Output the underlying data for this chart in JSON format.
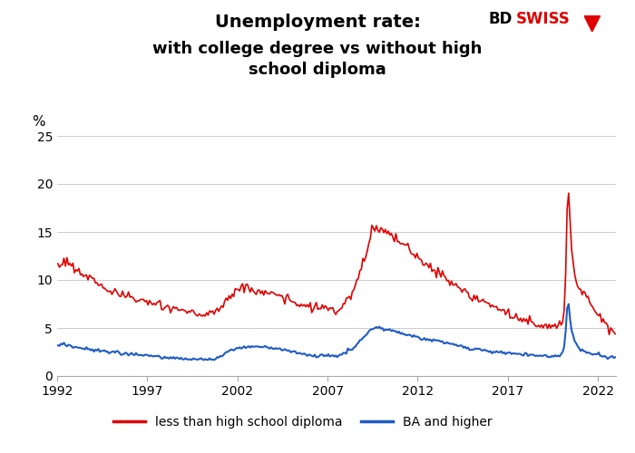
{
  "title_line1": "Unemployment rate:",
  "title_line2": "with college degree vs without high\nschool diploma",
  "ylabel": "%",
  "x_ticks": [
    1992,
    1997,
    2002,
    2007,
    2012,
    2017,
    2022
  ],
  "ylim": [
    0,
    25
  ],
  "y_ticks": [
    0,
    5,
    10,
    15,
    20,
    25
  ],
  "legend_red": "less than high school diploma",
  "legend_blue": "BA and higher",
  "color_red": "#e00000",
  "color_blue": "#1e5bc6",
  "background": "#ffffff",
  "bd_color": "#000000",
  "swiss_color": "#e00000",
  "red_keypoints": [
    [
      1992.0,
      11.2
    ],
    [
      1992.4,
      12.1
    ],
    [
      1993.0,
      11.2
    ],
    [
      1993.5,
      10.5
    ],
    [
      1994.0,
      10.0
    ],
    [
      1995.0,
      8.8
    ],
    [
      1996.0,
      8.2
    ],
    [
      1997.0,
      7.6
    ],
    [
      1998.0,
      7.2
    ],
    [
      1999.0,
      6.8
    ],
    [
      2000.0,
      6.3
    ],
    [
      2000.5,
      6.5
    ],
    [
      2001.0,
      7.0
    ],
    [
      2001.5,
      8.2
    ],
    [
      2002.0,
      9.0
    ],
    [
      2002.5,
      9.2
    ],
    [
      2003.0,
      8.8
    ],
    [
      2003.5,
      8.7
    ],
    [
      2004.0,
      8.5
    ],
    [
      2004.5,
      8.2
    ],
    [
      2005.0,
      7.8
    ],
    [
      2006.0,
      7.1
    ],
    [
      2006.5,
      7.0
    ],
    [
      2007.0,
      7.2
    ],
    [
      2007.5,
      6.5
    ],
    [
      2008.0,
      7.5
    ],
    [
      2008.5,
      9.0
    ],
    [
      2009.0,
      12.0
    ],
    [
      2009.5,
      15.5
    ],
    [
      2010.0,
      15.2
    ],
    [
      2010.5,
      14.5
    ],
    [
      2011.0,
      14.0
    ],
    [
      2011.5,
      13.3
    ],
    [
      2012.0,
      12.5
    ],
    [
      2012.5,
      11.5
    ],
    [
      2013.0,
      11.0
    ],
    [
      2014.0,
      9.5
    ],
    [
      2015.0,
      8.2
    ],
    [
      2016.0,
      7.5
    ],
    [
      2017.0,
      6.5
    ],
    [
      2018.0,
      5.6
    ],
    [
      2019.0,
      5.2
    ],
    [
      2019.5,
      5.0
    ],
    [
      2020.0,
      5.5
    ],
    [
      2020.17,
      8.0
    ],
    [
      2020.33,
      21.0
    ],
    [
      2020.5,
      14.0
    ],
    [
      2020.67,
      11.0
    ],
    [
      2020.83,
      9.5
    ],
    [
      2021.0,
      9.0
    ],
    [
      2021.25,
      8.5
    ],
    [
      2021.5,
      8.0
    ],
    [
      2021.75,
      7.0
    ],
    [
      2022.0,
      6.5
    ],
    [
      2022.25,
      6.0
    ],
    [
      2022.5,
      5.2
    ],
    [
      2022.75,
      4.8
    ],
    [
      2022.92,
      4.5
    ]
  ],
  "blue_keypoints": [
    [
      1992.0,
      3.1
    ],
    [
      1992.4,
      3.3
    ],
    [
      1993.0,
      3.0
    ],
    [
      1993.5,
      2.9
    ],
    [
      1994.0,
      2.7
    ],
    [
      1995.0,
      2.5
    ],
    [
      1996.0,
      2.3
    ],
    [
      1997.0,
      2.1
    ],
    [
      1998.0,
      1.9
    ],
    [
      1999.0,
      1.8
    ],
    [
      2000.0,
      1.7
    ],
    [
      2000.5,
      1.7
    ],
    [
      2001.0,
      2.0
    ],
    [
      2001.5,
      2.5
    ],
    [
      2002.0,
      2.9
    ],
    [
      2002.5,
      3.1
    ],
    [
      2003.0,
      3.1
    ],
    [
      2003.5,
      3.0
    ],
    [
      2004.0,
      2.9
    ],
    [
      2004.5,
      2.7
    ],
    [
      2005.0,
      2.5
    ],
    [
      2006.0,
      2.2
    ],
    [
      2006.5,
      2.1
    ],
    [
      2007.0,
      2.2
    ],
    [
      2007.5,
      2.0
    ],
    [
      2008.0,
      2.4
    ],
    [
      2008.5,
      3.0
    ],
    [
      2009.0,
      4.0
    ],
    [
      2009.5,
      5.0
    ],
    [
      2010.0,
      5.0
    ],
    [
      2010.5,
      4.7
    ],
    [
      2011.0,
      4.5
    ],
    [
      2011.5,
      4.3
    ],
    [
      2012.0,
      4.0
    ],
    [
      2012.5,
      3.8
    ],
    [
      2013.0,
      3.7
    ],
    [
      2014.0,
      3.3
    ],
    [
      2015.0,
      2.8
    ],
    [
      2016.0,
      2.6
    ],
    [
      2017.0,
      2.4
    ],
    [
      2018.0,
      2.2
    ],
    [
      2019.0,
      2.1
    ],
    [
      2019.5,
      2.0
    ],
    [
      2020.0,
      2.2
    ],
    [
      2020.17,
      3.5
    ],
    [
      2020.33,
      8.4
    ],
    [
      2020.5,
      5.0
    ],
    [
      2020.67,
      3.8
    ],
    [
      2020.83,
      3.2
    ],
    [
      2021.0,
      2.8
    ],
    [
      2021.25,
      2.6
    ],
    [
      2021.5,
      2.4
    ],
    [
      2021.75,
      2.2
    ],
    [
      2022.0,
      2.2
    ],
    [
      2022.25,
      2.1
    ],
    [
      2022.5,
      2.0
    ],
    [
      2022.75,
      2.0
    ],
    [
      2022.92,
      2.0
    ]
  ]
}
